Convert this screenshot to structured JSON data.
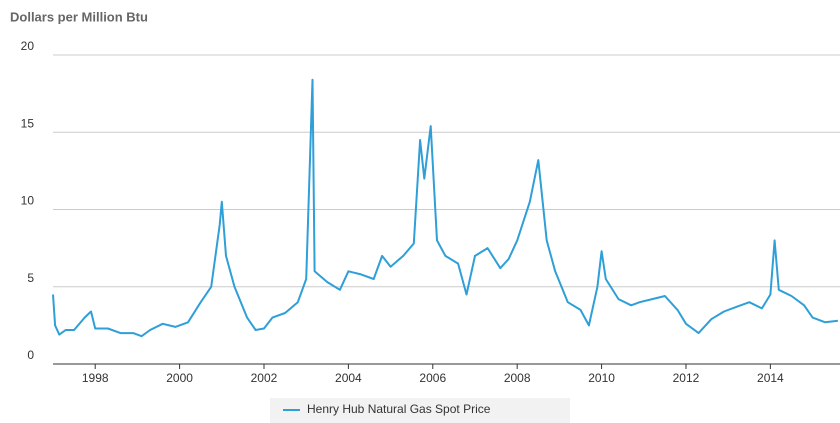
{
  "chart_data": {
    "type": "line",
    "title": "Dollars per Million Btu",
    "x": [
      1997.0,
      1997.05,
      1997.15,
      1997.3,
      1997.5,
      1997.75,
      1997.9,
      1998.0,
      1998.3,
      1998.6,
      1998.9,
      1999.1,
      1999.3,
      1999.6,
      1999.9,
      2000.2,
      2000.5,
      2000.75,
      2000.95,
      2001.0,
      2001.1,
      2001.3,
      2001.6,
      2001.8,
      2002.0,
      2002.2,
      2002.5,
      2002.8,
      2003.0,
      2003.15,
      2003.2,
      2003.5,
      2003.8,
      2004.0,
      2004.3,
      2004.6,
      2004.8,
      2005.0,
      2005.3,
      2005.55,
      2005.7,
      2005.8,
      2005.95,
      2006.1,
      2006.3,
      2006.6,
      2006.8,
      2007.0,
      2007.3,
      2007.6,
      2007.8,
      2008.0,
      2008.3,
      2008.5,
      2008.7,
      2008.9,
      2009.2,
      2009.5,
      2009.7,
      2009.9,
      2010.0,
      2010.1,
      2010.4,
      2010.7,
      2010.9,
      2011.2,
      2011.5,
      2011.8,
      2012.0,
      2012.3,
      2012.6,
      2012.9,
      2013.2,
      2013.5,
      2013.8,
      2014.0,
      2014.1,
      2014.2,
      2014.5,
      2014.8,
      2015.0,
      2015.3,
      2015.6
    ],
    "series": [
      {
        "name": "Henry Hub Natural Gas Spot Price",
        "color": "#2f9fd8",
        "values": [
          4.5,
          2.5,
          1.9,
          2.2,
          2.2,
          3.0,
          3.4,
          2.3,
          2.3,
          2.0,
          2.0,
          1.8,
          2.2,
          2.6,
          2.4,
          2.7,
          4.0,
          5.0,
          9.0,
          10.5,
          7.0,
          5.0,
          3.0,
          2.2,
          2.3,
          3.0,
          3.3,
          4.0,
          5.5,
          18.4,
          6.0,
          5.3,
          4.8,
          6.0,
          5.8,
          5.5,
          7.0,
          6.3,
          7.0,
          7.8,
          14.5,
          12.0,
          15.4,
          8.0,
          7.0,
          6.5,
          4.5,
          7.0,
          7.5,
          6.2,
          6.8,
          8.0,
          10.5,
          13.2,
          8.0,
          6.0,
          4.0,
          3.5,
          2.5,
          5.0,
          7.3,
          5.5,
          4.2,
          3.8,
          4.0,
          4.2,
          4.4,
          3.5,
          2.6,
          2.0,
          2.9,
          3.4,
          3.7,
          4.0,
          3.6,
          4.5,
          8.0,
          4.8,
          4.4,
          3.8,
          3.0,
          2.7,
          2.8
        ]
      }
    ],
    "xlim": [
      1997.0,
      2015.65
    ],
    "xticks": [
      1998,
      2000,
      2002,
      2004,
      2006,
      2008,
      2010,
      2012,
      2014
    ],
    "ylim": [
      0,
      20
    ],
    "yticks": [
      0,
      5,
      10,
      15,
      20
    ],
    "grid": true
  }
}
